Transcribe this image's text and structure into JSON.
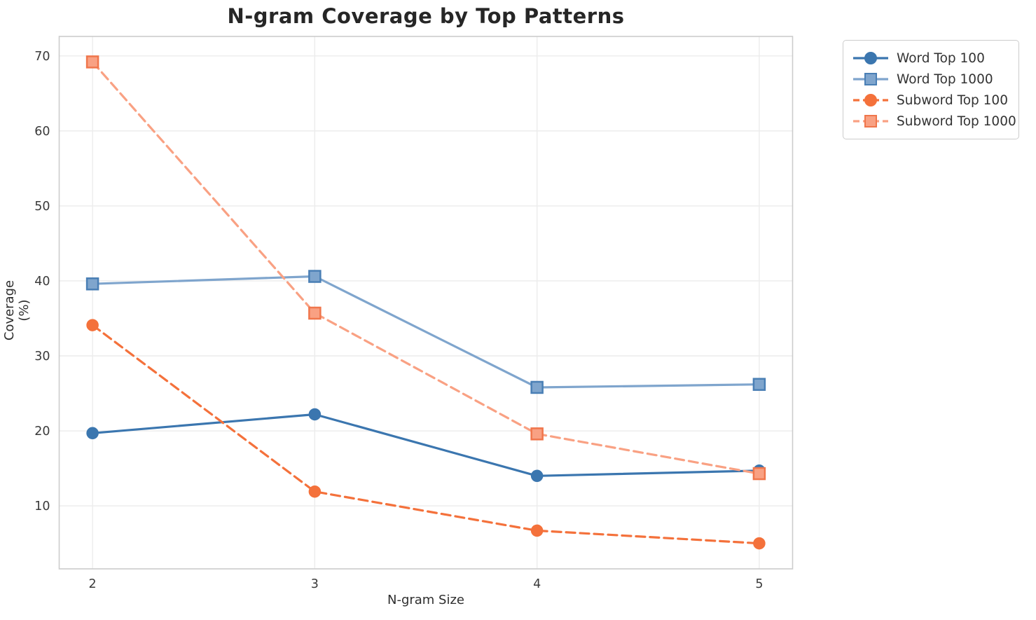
{
  "chart_data": {
    "type": "line",
    "title": "N-gram Coverage by Top Patterns",
    "xlabel": "N-gram Size",
    "ylabel": "Coverage (%)",
    "x": [
      2,
      3,
      4,
      5
    ],
    "xticks": [
      2,
      3,
      4,
      5
    ],
    "yticks": [
      10,
      20,
      30,
      40,
      50,
      60,
      70
    ],
    "xlim": [
      1.85,
      5.15
    ],
    "ylim": [
      1.6,
      72.6
    ],
    "grid": true,
    "grid_color": "#ececec",
    "spine_color": "#cccccc",
    "background": "#ffffff",
    "legend_position": "outside-upper-right",
    "series": [
      {
        "name": "Word Top 100",
        "values": [
          19.7,
          22.2,
          14.0,
          14.7
        ],
        "color": "#3b76af",
        "edge": "#3b76af",
        "marker": "circle",
        "dash": "solid"
      },
      {
        "name": "Word Top 1000",
        "values": [
          39.6,
          40.6,
          25.8,
          26.2
        ],
        "color": "#7fa5cd",
        "edge": "#4a7fb5",
        "marker": "square",
        "dash": "solid"
      },
      {
        "name": "Subword Top 100",
        "values": [
          34.1,
          11.9,
          6.7,
          5.0
        ],
        "color": "#f4713b",
        "edge": "#f4713b",
        "marker": "circle",
        "dash": "dashed"
      },
      {
        "name": "Subword Top 1000",
        "values": [
          69.2,
          35.7,
          19.6,
          14.3
        ],
        "color": "#f9a183",
        "edge": "#f0764c",
        "marker": "square",
        "dash": "dashed"
      }
    ]
  }
}
